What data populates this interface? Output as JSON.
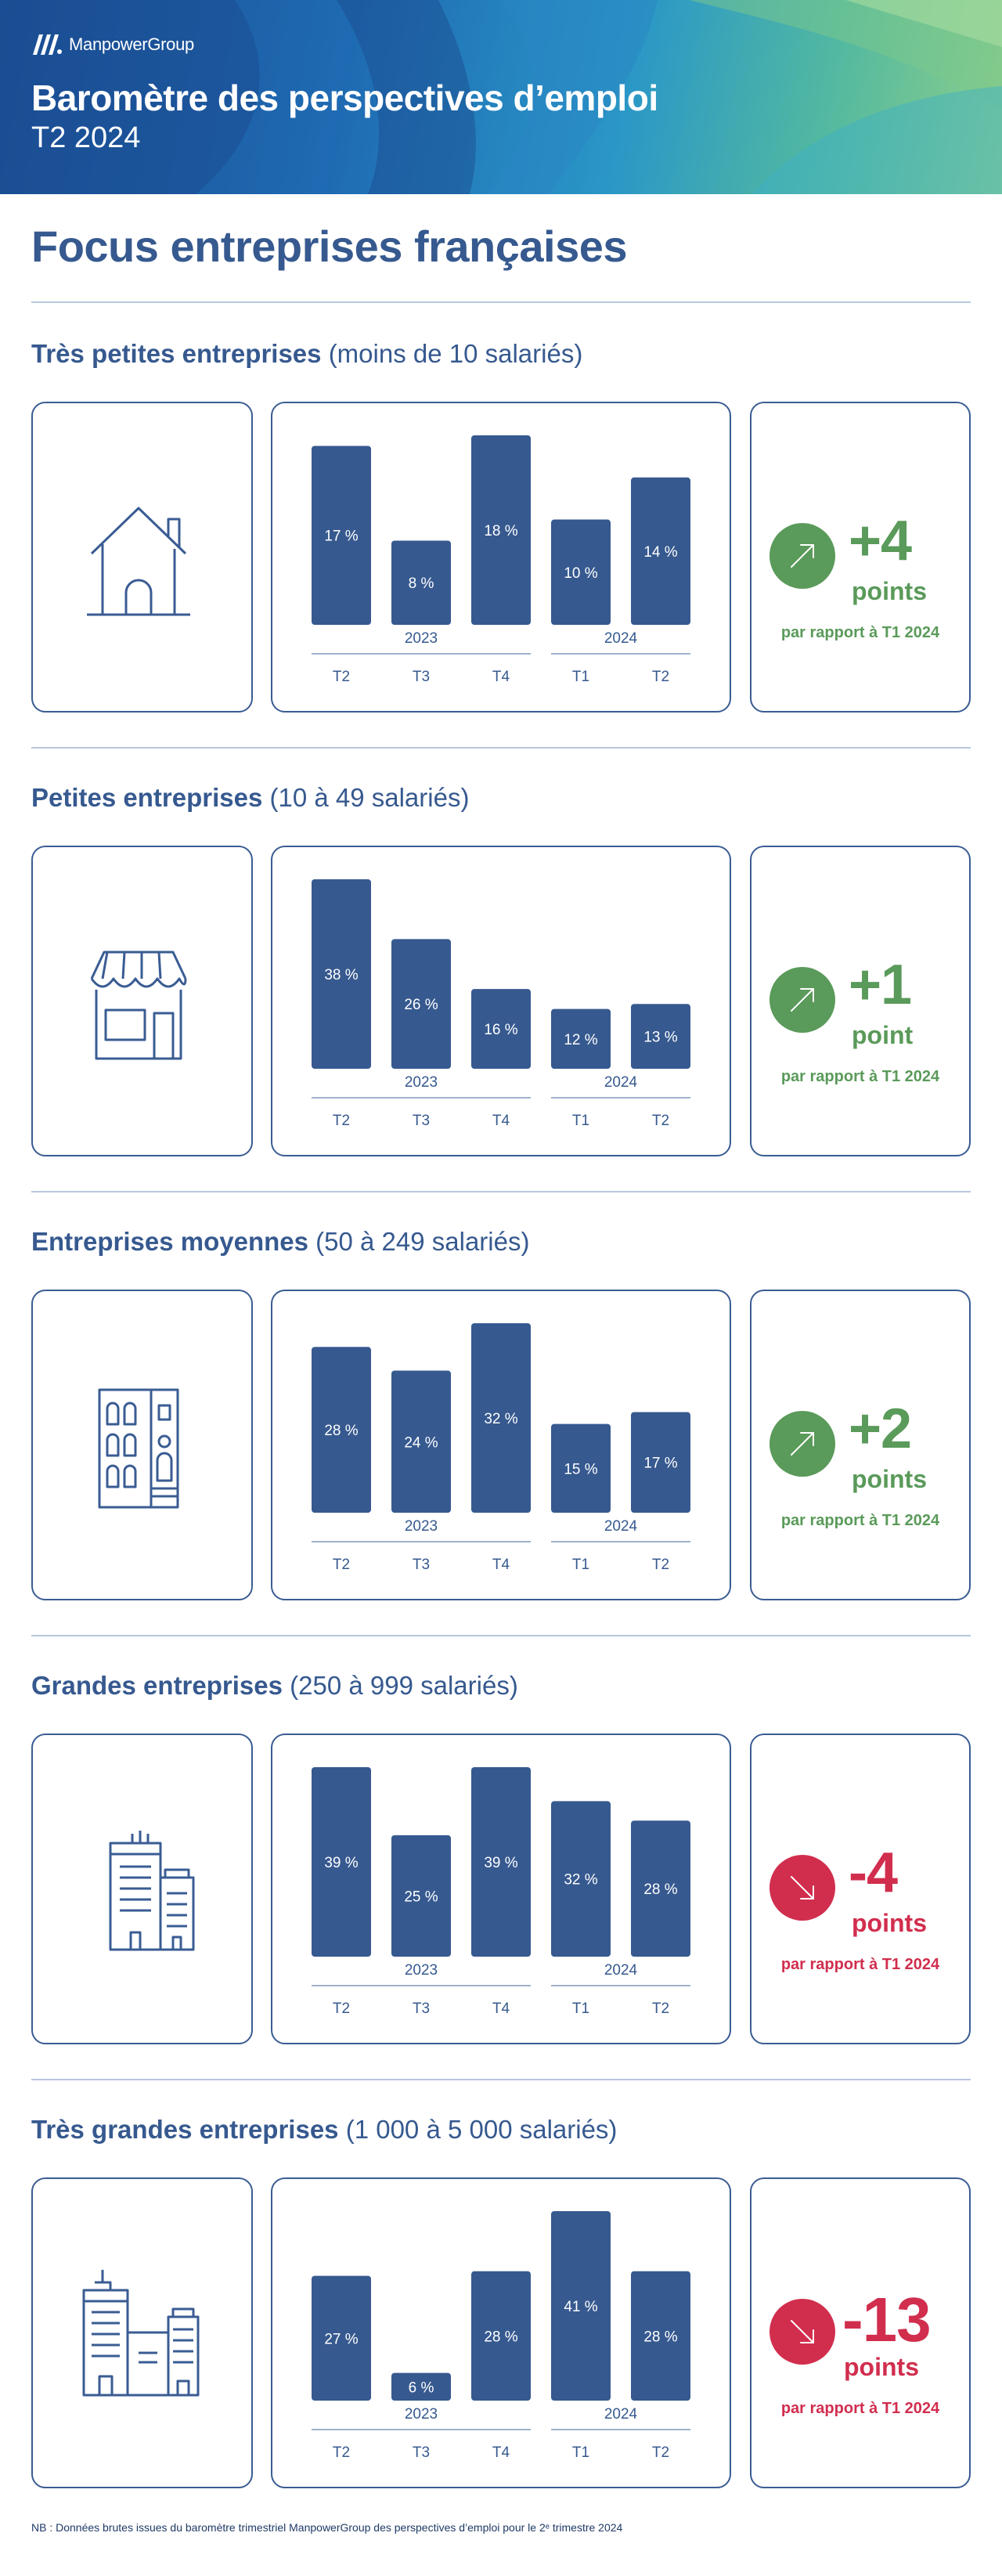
{
  "header": {
    "brand": "ManpowerGroup",
    "title": "Baromètre des perspectives d’emploi",
    "subtitle": "T2 2024"
  },
  "main": {
    "title": "Focus entreprises françaises"
  },
  "colors": {
    "bar": "#36598f",
    "positive": "#5a9a5a",
    "negative": "#d12e4e",
    "text": "#36598f"
  },
  "chart_data": [
    {
      "type": "bar",
      "title": "Très petites entreprises",
      "subtitle": "(moins de 10 salariés)",
      "categories": [
        "T2",
        "T3",
        "T4",
        "T1",
        "T2"
      ],
      "years": [
        {
          "label": "2023",
          "span": [
            0,
            2
          ]
        },
        {
          "label": "2024",
          "span": [
            3,
            4
          ]
        }
      ],
      "values": [
        17,
        8,
        18,
        10,
        14
      ],
      "value_labels": [
        "17 %",
        "8 %",
        "18 %",
        "10 %",
        "14 %"
      ],
      "ylim": [
        0,
        18
      ],
      "icon": "house-icon",
      "delta": {
        "value": "+4",
        "unit": "points",
        "note": "par rapport à T1 2024",
        "direction": "up"
      }
    },
    {
      "type": "bar",
      "title": "Petites entreprises",
      "subtitle": "(10 à 49 salariés)",
      "categories": [
        "T2",
        "T3",
        "T4",
        "T1",
        "T2"
      ],
      "years": [
        {
          "label": "2023",
          "span": [
            0,
            2
          ]
        },
        {
          "label": "2024",
          "span": [
            3,
            4
          ]
        }
      ],
      "values": [
        38,
        26,
        16,
        12,
        13
      ],
      "value_labels": [
        "38 %",
        "26 %",
        "16 %",
        "12 %",
        "13 %"
      ],
      "ylim": [
        0,
        38
      ],
      "icon": "shop-icon",
      "delta": {
        "value": "+1",
        "unit": "point",
        "note": "par rapport à T1 2024",
        "direction": "up"
      }
    },
    {
      "type": "bar",
      "title": "Entreprises moyennes",
      "subtitle": "(50 à 249 salariés)",
      "categories": [
        "T2",
        "T3",
        "T4",
        "T1",
        "T2"
      ],
      "years": [
        {
          "label": "2023",
          "span": [
            0,
            2
          ]
        },
        {
          "label": "2024",
          "span": [
            3,
            4
          ]
        }
      ],
      "values": [
        28,
        24,
        32,
        15,
        17
      ],
      "value_labels": [
        "28 %",
        "24 %",
        "32 %",
        "15 %",
        "17 %"
      ],
      "ylim": [
        0,
        32
      ],
      "icon": "apartment-building-icon",
      "delta": {
        "value": "+2",
        "unit": "points",
        "note": "par rapport à T1 2024",
        "direction": "up"
      }
    },
    {
      "type": "bar",
      "title": "Grandes entreprises",
      "subtitle": "(250 à 999 salariés)",
      "categories": [
        "T2",
        "T3",
        "T4",
        "T1",
        "T2"
      ],
      "years": [
        {
          "label": "2023",
          "span": [
            0,
            2
          ]
        },
        {
          "label": "2024",
          "span": [
            3,
            4
          ]
        }
      ],
      "values": [
        39,
        25,
        39,
        32,
        28
      ],
      "value_labels": [
        "39 %",
        "25 %",
        "39 %",
        "32 %",
        "28 %"
      ],
      "ylim": [
        0,
        39
      ],
      "icon": "office-buildings-icon",
      "delta": {
        "value": "-4",
        "unit": "points",
        "note": "par rapport à T1 2024",
        "direction": "down"
      }
    },
    {
      "type": "bar",
      "title": "Très grandes entreprises",
      "subtitle": "(1 000 à 5 000 salariés)",
      "categories": [
        "T2",
        "T3",
        "T4",
        "T1",
        "T2"
      ],
      "years": [
        {
          "label": "2023",
          "span": [
            0,
            2
          ]
        },
        {
          "label": "2024",
          "span": [
            3,
            4
          ]
        }
      ],
      "values": [
        27,
        6,
        28,
        41,
        28
      ],
      "value_labels": [
        "27 %",
        "6 %",
        "28 %",
        "41 %",
        "28 %"
      ],
      "ylim": [
        0,
        41
      ],
      "icon": "large-campus-icon",
      "delta": {
        "value": "-13",
        "unit": "points",
        "note": "par rapport à T1 2024",
        "direction": "down"
      }
    }
  ],
  "footnote": "NB : Données brutes issues du baromètre trimestriel ManpowerGroup des perspectives d’emploi pour le 2ᵉ trimestre 2024"
}
